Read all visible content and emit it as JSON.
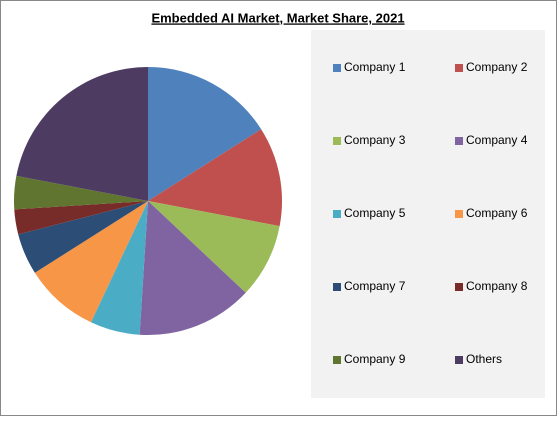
{
  "chart_data": {
    "type": "pie",
    "title": "Embedded AI Market, Market Share, 2021",
    "categories": [
      "Company 1",
      "Company 2",
      "Company 3",
      "Company 4",
      "Company 5",
      "Company 6",
      "Company 7",
      "Company 8",
      "Company 9",
      "Others"
    ],
    "values": [
      16,
      12,
      9,
      14,
      6,
      9,
      5,
      3,
      4,
      22
    ],
    "colors": [
      "#4f81bd",
      "#c0504d",
      "#9bbb59",
      "#8064a2",
      "#4bacc6",
      "#f79646",
      "#2c4d75",
      "#772c2a",
      "#5f7530",
      "#4d3b62"
    ],
    "legend": "right"
  }
}
